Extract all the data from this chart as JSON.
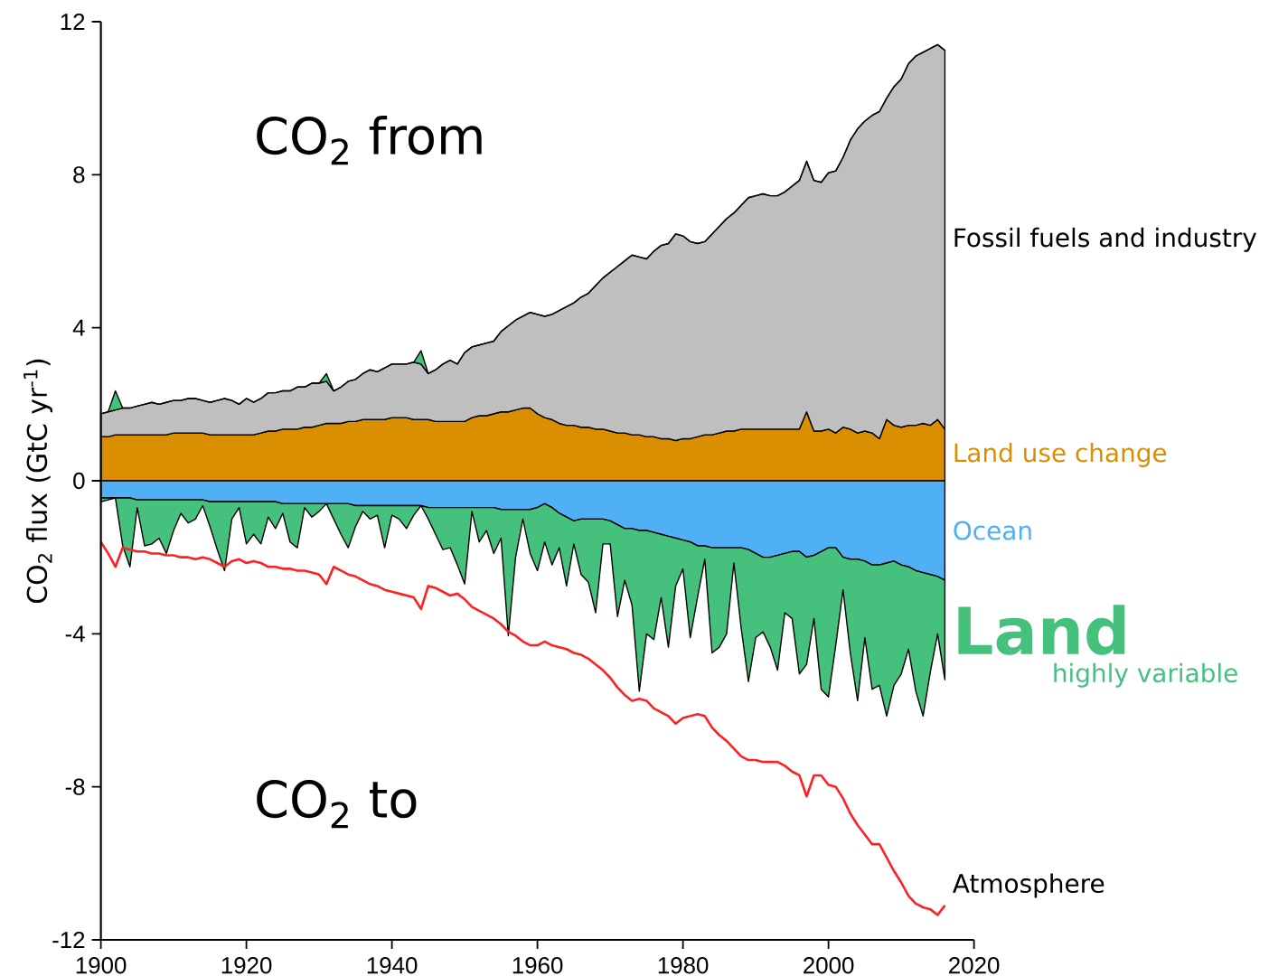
{
  "chart_data": [
    {
      "type": "area",
      "stacked": true,
      "tick_labels": "y",
      "ylabel": "CO$_{2}$ flux (GtC yr$^{-1}$)",
      "annotations": [
        "CO$_{2}$ from"
      ],
      "xlim": [
        1900,
        2020
      ],
      "ylim": [
        0,
        12
      ],
      "yticks": [
        0,
        4,
        8,
        12
      ],
      "x": [
        1900,
        1901,
        1902,
        1903,
        1904,
        1905,
        1906,
        1907,
        1908,
        1909,
        1910,
        1911,
        1912,
        1913,
        1914,
        1915,
        1916,
        1917,
        1918,
        1919,
        1920,
        1921,
        1922,
        1923,
        1924,
        1925,
        1926,
        1927,
        1928,
        1929,
        1930,
        1931,
        1932,
        1933,
        1934,
        1935,
        1936,
        1937,
        1938,
        1939,
        1940,
        1941,
        1942,
        1943,
        1944,
        1945,
        1946,
        1947,
        1948,
        1949,
        1950,
        1951,
        1952,
        1953,
        1954,
        1955,
        1956,
        1957,
        1958,
        1959,
        1960,
        1961,
        1962,
        1963,
        1964,
        1965,
        1966,
        1967,
        1968,
        1969,
        1970,
        1971,
        1972,
        1973,
        1974,
        1975,
        1976,
        1977,
        1978,
        1979,
        1980,
        1981,
        1982,
        1983,
        1984,
        1985,
        1986,
        1987,
        1988,
        1989,
        1990,
        1991,
        1992,
        1993,
        1994,
        1995,
        1996,
        1997,
        1998,
        1999,
        2000,
        2001,
        2002,
        2003,
        2004,
        2005,
        2006,
        2007,
        2008,
        2009,
        2010,
        2011,
        2012,
        2013,
        2014,
        2015,
        2016
      ],
      "series": [
        {
          "name": "Land use change",
          "color": "#da8f00",
          "values": [
            1.15,
            1.15,
            1.2,
            1.2,
            1.2,
            1.2,
            1.2,
            1.2,
            1.2,
            1.2,
            1.25,
            1.25,
            1.25,
            1.25,
            1.25,
            1.2,
            1.2,
            1.2,
            1.2,
            1.2,
            1.2,
            1.2,
            1.25,
            1.3,
            1.3,
            1.35,
            1.35,
            1.35,
            1.4,
            1.4,
            1.45,
            1.5,
            1.5,
            1.5,
            1.55,
            1.55,
            1.6,
            1.6,
            1.6,
            1.6,
            1.65,
            1.65,
            1.65,
            1.6,
            1.6,
            1.6,
            1.55,
            1.55,
            1.55,
            1.55,
            1.55,
            1.65,
            1.7,
            1.7,
            1.75,
            1.8,
            1.8,
            1.85,
            1.9,
            1.9,
            1.75,
            1.65,
            1.6,
            1.5,
            1.45,
            1.45,
            1.4,
            1.4,
            1.35,
            1.35,
            1.3,
            1.25,
            1.25,
            1.2,
            1.2,
            1.15,
            1.15,
            1.1,
            1.1,
            1.05,
            1.1,
            1.1,
            1.15,
            1.2,
            1.2,
            1.25,
            1.3,
            1.3,
            1.35,
            1.35,
            1.35,
            1.35,
            1.35,
            1.35,
            1.35,
            1.35,
            1.35,
            1.8,
            1.3,
            1.3,
            1.35,
            1.25,
            1.4,
            1.35,
            1.25,
            1.3,
            1.25,
            1.1,
            1.6,
            1.45,
            1.4,
            1.45,
            1.45,
            1.5,
            1.45,
            1.6,
            1.35
          ]
        },
        {
          "name": "Fossil fuels and industry",
          "color": "#bfbfbf",
          "values": [
            0.6,
            0.65,
            0.65,
            0.7,
            0.7,
            0.75,
            0.8,
            0.85,
            0.8,
            0.85,
            0.85,
            0.85,
            0.9,
            0.9,
            0.85,
            0.85,
            0.9,
            0.95,
            0.9,
            0.8,
            0.95,
            0.85,
            0.9,
            1.0,
            1.0,
            1.0,
            1.0,
            1.1,
            1.05,
            1.15,
            1.1,
            1.1,
            0.85,
            0.95,
            1.05,
            1.1,
            1.2,
            1.3,
            1.25,
            1.35,
            1.4,
            1.4,
            1.4,
            1.5,
            1.45,
            1.2,
            1.35,
            1.5,
            1.6,
            1.5,
            1.8,
            1.85,
            1.85,
            1.9,
            1.9,
            2.1,
            2.25,
            2.35,
            2.4,
            2.5,
            2.6,
            2.65,
            2.75,
            2.95,
            3.1,
            3.2,
            3.4,
            3.5,
            3.75,
            3.95,
            4.15,
            4.35,
            4.5,
            4.7,
            4.65,
            4.65,
            4.85,
            5.05,
            5.1,
            5.4,
            5.3,
            5.15,
            5.05,
            5.05,
            5.25,
            5.4,
            5.55,
            5.7,
            5.85,
            6.05,
            6.1,
            6.15,
            6.1,
            6.1,
            6.2,
            6.35,
            6.5,
            6.55,
            6.55,
            6.5,
            6.7,
            6.85,
            7.05,
            7.55,
            7.95,
            8.1,
            8.3,
            8.55,
            8.4,
            8.85,
            9.1,
            9.45,
            9.65,
            9.7,
            9.85,
            9.8,
            9.9
          ]
        },
        {
          "color": "#45c07d",
          "values": [
            0,
            0,
            0.5,
            0,
            0,
            0,
            0,
            0,
            0,
            0,
            0,
            0,
            0,
            0,
            0,
            0,
            0,
            0,
            0,
            0,
            0,
            0,
            0,
            0,
            0,
            0,
            0,
            0,
            0,
            0,
            0,
            0.2,
            0,
            0,
            0,
            0,
            0,
            0,
            0,
            0,
            0,
            0,
            0,
            0,
            0.35,
            0,
            0,
            0,
            0,
            0,
            0,
            0,
            0,
            0,
            0,
            0,
            0,
            0,
            0,
            0,
            0,
            0,
            0,
            0,
            0,
            0,
            0,
            0,
            0,
            0,
            0,
            0,
            0,
            0,
            0,
            0,
            0,
            0,
            0,
            0,
            0,
            0,
            0,
            0,
            0,
            0,
            0,
            0,
            0,
            0,
            0,
            0,
            0,
            0,
            0,
            0,
            0,
            0,
            0,
            0,
            0,
            0,
            0,
            0,
            0,
            0,
            0,
            0,
            0,
            0,
            0,
            0,
            0,
            0,
            0,
            0,
            0
          ]
        }
      ]
    },
    {
      "type": "area",
      "stacked": true,
      "annotations": [
        "CO$_{2}$ to",
        "highly variable"
      ],
      "xlim": [
        1900,
        2020
      ],
      "xticks": [
        1900,
        1920,
        1940,
        1960,
        1980,
        2000,
        2020
      ],
      "ylim": [
        -12,
        0
      ],
      "yticks": [
        -12,
        -8,
        -4
      ],
      "x": [
        1900,
        1901,
        1902,
        1903,
        1904,
        1905,
        1906,
        1907,
        1908,
        1909,
        1910,
        1911,
        1912,
        1913,
        1914,
        1915,
        1916,
        1917,
        1918,
        1919,
        1920,
        1921,
        1922,
        1923,
        1924,
        1925,
        1926,
        1927,
        1928,
        1929,
        1930,
        1931,
        1932,
        1933,
        1934,
        1935,
        1936,
        1937,
        1938,
        1939,
        1940,
        1941,
        1942,
        1943,
        1944,
        1945,
        1946,
        1947,
        1948,
        1949,
        1950,
        1951,
        1952,
        1953,
        1954,
        1955,
        1956,
        1957,
        1958,
        1959,
        1960,
        1961,
        1962,
        1963,
        1964,
        1965,
        1966,
        1967,
        1968,
        1969,
        1970,
        1971,
        1972,
        1973,
        1974,
        1975,
        1976,
        1977,
        1978,
        1979,
        1980,
        1981,
        1982,
        1983,
        1984,
        1985,
        1986,
        1987,
        1988,
        1989,
        1990,
        1991,
        1992,
        1993,
        1994,
        1995,
        1996,
        1997,
        1998,
        1999,
        2000,
        2001,
        2002,
        2003,
        2004,
        2005,
        2006,
        2007,
        2008,
        2009,
        2010,
        2011,
        2012,
        2013,
        2014,
        2015,
        2016
      ],
      "series": [
        {
          "name": "Ocean",
          "color": "#50b0f5",
          "values": [
            -0.45,
            -0.45,
            -0.45,
            -0.45,
            -0.45,
            -0.5,
            -0.5,
            -0.5,
            -0.5,
            -0.5,
            -0.5,
            -0.5,
            -0.5,
            -0.5,
            -0.5,
            -0.55,
            -0.55,
            -0.55,
            -0.55,
            -0.55,
            -0.55,
            -0.55,
            -0.55,
            -0.55,
            -0.55,
            -0.6,
            -0.6,
            -0.6,
            -0.6,
            -0.6,
            -0.6,
            -0.6,
            -0.6,
            -0.6,
            -0.6,
            -0.65,
            -0.65,
            -0.65,
            -0.65,
            -0.65,
            -0.65,
            -0.65,
            -0.65,
            -0.65,
            -0.65,
            -0.7,
            -0.7,
            -0.7,
            -0.7,
            -0.7,
            -0.7,
            -0.7,
            -0.7,
            -0.7,
            -0.7,
            -0.75,
            -0.75,
            -0.75,
            -0.75,
            -0.75,
            -0.7,
            -0.6,
            -0.7,
            -0.85,
            -0.95,
            -1.05,
            -1.0,
            -1.0,
            -1.0,
            -1.0,
            -1.05,
            -1.15,
            -1.25,
            -1.25,
            -1.3,
            -1.3,
            -1.35,
            -1.4,
            -1.45,
            -1.5,
            -1.55,
            -1.6,
            -1.7,
            -1.7,
            -1.75,
            -1.75,
            -1.75,
            -1.75,
            -1.75,
            -1.8,
            -1.9,
            -2.0,
            -2.0,
            -1.95,
            -1.9,
            -1.85,
            -1.85,
            -2.0,
            -1.95,
            -1.85,
            -1.75,
            -1.75,
            -2.0,
            -2.05,
            -2.05,
            -2.1,
            -2.2,
            -2.2,
            -2.15,
            -2.1,
            -2.2,
            -2.25,
            -2.35,
            -2.4,
            -2.45,
            -2.5,
            -2.6
          ]
        },
        {
          "name": "Land",
          "color": "#45c07d",
          "values": [
            -0.1,
            -0.05,
            0,
            -1.25,
            -1.8,
            -0.2,
            -1.2,
            -1.15,
            -1.0,
            -1.4,
            -0.8,
            -0.35,
            -0.6,
            -0.5,
            -0.15,
            -0.65,
            -1.25,
            -1.8,
            -0.45,
            -0.15,
            -1.1,
            -0.85,
            -1.1,
            -0.4,
            -0.7,
            -0.25,
            -1.0,
            -1.15,
            -0.1,
            -0.35,
            -0.2,
            0,
            -0.4,
            -0.8,
            -1.15,
            -0.55,
            -0.15,
            -0.35,
            -0.25,
            -1.1,
            -0.25,
            -0.35,
            -0.6,
            -0.25,
            0,
            -0.3,
            -0.7,
            -1.1,
            -1.05,
            -1.5,
            -2.0,
            -0.1,
            -0.9,
            -0.6,
            -1.2,
            -0.75,
            -3.3,
            -1.25,
            -0.25,
            -1.15,
            -1.65,
            -1.0,
            -1.5,
            -0.9,
            -1.8,
            -0.6,
            -1.45,
            -1.65,
            -2.45,
            -0.65,
            -0.6,
            -2.4,
            -1.35,
            -2.0,
            -4.2,
            -2.7,
            -2.8,
            -1.65,
            -2.9,
            -1.25,
            -0.75,
            -2.5,
            -1.35,
            -0.35,
            -2.75,
            -2.6,
            -2.25,
            -0.4,
            -2.1,
            -3.45,
            -2.2,
            -1.95,
            -2.35,
            -3.0,
            -1.55,
            -1.75,
            -3.2,
            -2.8,
            -1.65,
            -3.6,
            -3.9,
            -2.55,
            -0.85,
            -2.45,
            -3.7,
            -2.0,
            -3.25,
            -3.15,
            -4.0,
            -3.25,
            -2.85,
            -2.15,
            -3.15,
            -3.75,
            -2.55,
            -1.5,
            -2.6
          ]
        },
        {
          "name": "Atmosphere",
          "type": "line",
          "color": "#ff2121",
          "values": [
            -1.6,
            -1.9,
            -2.25,
            -1.75,
            -1.8,
            -1.85,
            -1.85,
            -1.9,
            -1.9,
            -1.95,
            -1.95,
            -2.0,
            -2.0,
            -2.05,
            -2.0,
            -2.05,
            -2.15,
            -2.25,
            -2.1,
            -2.05,
            -2.15,
            -2.1,
            -2.15,
            -2.25,
            -2.25,
            -2.3,
            -2.3,
            -2.35,
            -2.35,
            -2.4,
            -2.45,
            -2.7,
            -2.25,
            -2.35,
            -2.45,
            -2.5,
            -2.6,
            -2.7,
            -2.75,
            -2.85,
            -2.9,
            -2.95,
            -3.0,
            -3.05,
            -3.35,
            -2.75,
            -2.8,
            -2.9,
            -3.0,
            -2.95,
            -3.1,
            -3.3,
            -3.4,
            -3.5,
            -3.6,
            -3.75,
            -3.95,
            -4.05,
            -4.2,
            -4.3,
            -4.3,
            -4.2,
            -4.3,
            -4.35,
            -4.4,
            -4.5,
            -4.55,
            -4.65,
            -4.8,
            -4.95,
            -5.15,
            -5.4,
            -5.6,
            -5.75,
            -5.7,
            -5.75,
            -5.95,
            -6.05,
            -6.15,
            -6.35,
            -6.2,
            -6.15,
            -6.1,
            -6.15,
            -6.45,
            -6.65,
            -6.8,
            -7.0,
            -7.2,
            -7.3,
            -7.3,
            -7.35,
            -7.35,
            -7.35,
            -7.45,
            -7.6,
            -7.7,
            -8.25,
            -7.7,
            -7.7,
            -7.95,
            -8.0,
            -8.3,
            -8.7,
            -9.0,
            -9.25,
            -9.5,
            -9.5,
            -9.85,
            -10.2,
            -10.5,
            -10.85,
            -11.05,
            -11.15,
            -11.2,
            -11.35,
            -11.1
          ]
        }
      ]
    }
  ]
}
